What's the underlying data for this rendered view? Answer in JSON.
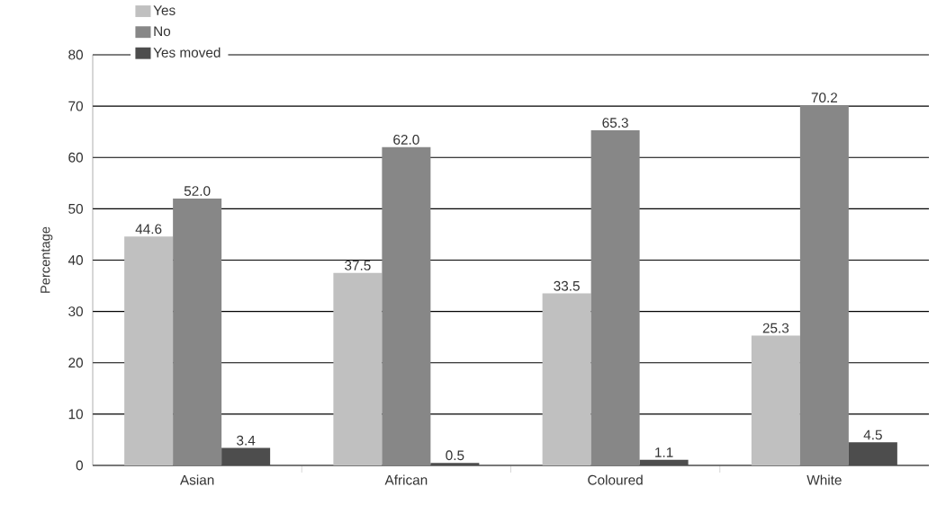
{
  "chart_data": {
    "type": "bar",
    "ylabel": "Percentage",
    "categories": [
      "Asian",
      "African",
      "Coloured",
      "White"
    ],
    "series": [
      {
        "name": "Yes",
        "color": "#c0c0c0",
        "values": [
          44.6,
          37.5,
          33.5,
          25.3
        ],
        "value_labels": [
          "44.6",
          "37.5",
          "33.5",
          "25.3"
        ]
      },
      {
        "name": "No",
        "color": "#878787",
        "values": [
          52.0,
          62.0,
          65.3,
          70.2
        ],
        "value_labels": [
          "52.0",
          "62.0",
          "65.3",
          "70.2"
        ]
      },
      {
        "name": "Yes moved",
        "color": "#4d4d4d",
        "values": [
          3.4,
          0.5,
          1.1,
          4.5
        ],
        "value_labels": [
          "3.4",
          "0.5",
          "1.1",
          "4.5"
        ]
      }
    ],
    "ylim": [
      0,
      80
    ],
    "yticks": [
      0,
      10,
      20,
      30,
      40,
      50,
      60,
      70,
      80
    ],
    "grid": "y",
    "legend": "top left"
  }
}
